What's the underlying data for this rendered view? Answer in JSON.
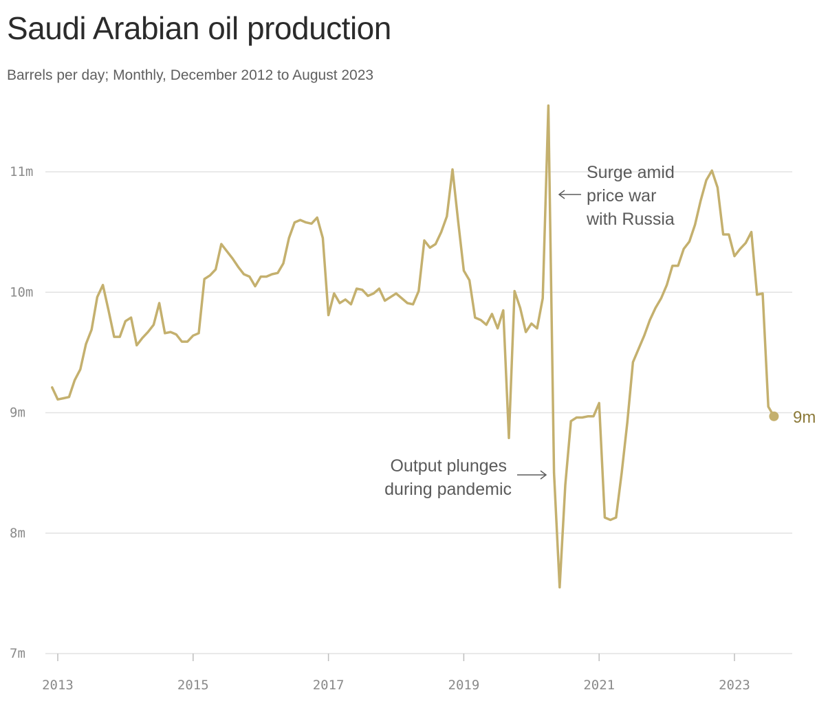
{
  "title": "Saudi Arabian oil production",
  "subtitle": "Barrels per day; Monthly, December 2012 to August 2023",
  "colors": {
    "line": "#c4b06e",
    "end_label": "#8c7a3a",
    "grid": "#e2e2e2",
    "annotation": "#5a5a5a"
  },
  "annotations": {
    "surge": [
      "Surge amid",
      "price war",
      "with Russia"
    ],
    "plunge": [
      "Output plunges",
      "during pandemic"
    ]
  },
  "end_label": "9m",
  "chart_data": {
    "type": "line",
    "title": "Saudi Arabian oil production",
    "subtitle": "Barrels per day; Monthly, December 2012 to August 2023",
    "ylim": [
      7,
      11.5
    ],
    "y_ticks": [
      {
        "value": 7,
        "label": "7m"
      },
      {
        "value": 8,
        "label": "8m"
      },
      {
        "value": 9,
        "label": "9m"
      },
      {
        "value": 10,
        "label": "10m"
      },
      {
        "value": 11,
        "label": "11m"
      }
    ],
    "x_ticks": [
      {
        "year": 2013,
        "label": "2013"
      },
      {
        "year": 2015,
        "label": "2015"
      },
      {
        "year": 2017,
        "label": "2017"
      },
      {
        "year": 2019,
        "label": "2019"
      },
      {
        "year": 2021,
        "label": "2021"
      },
      {
        "year": 2023,
        "label": "2023"
      }
    ],
    "grid": true,
    "series": [
      {
        "start": "2012-12",
        "end": "2023-08",
        "values": [
          9.21,
          9.11,
          9.12,
          9.13,
          9.27,
          9.36,
          9.57,
          9.69,
          9.96,
          10.06,
          9.85,
          9.63,
          9.63,
          9.76,
          9.79,
          9.56,
          9.62,
          9.67,
          9.73,
          9.91,
          9.66,
          9.67,
          9.65,
          9.59,
          9.59,
          9.64,
          9.66,
          10.11,
          10.14,
          10.19,
          10.4,
          10.34,
          10.28,
          10.21,
          10.15,
          10.13,
          10.05,
          10.13,
          10.13,
          10.15,
          10.16,
          10.24,
          10.45,
          10.58,
          10.6,
          10.58,
          10.57,
          10.62,
          10.45,
          9.81,
          9.99,
          9.91,
          9.94,
          9.9,
          10.03,
          10.02,
          9.97,
          9.99,
          10.03,
          9.93,
          9.96,
          9.99,
          9.95,
          9.91,
          9.9,
          10.01,
          10.43,
          10.37,
          10.4,
          10.5,
          10.63,
          11.02,
          10.59,
          10.18,
          10.1,
          9.79,
          9.77,
          9.73,
          9.82,
          9.7,
          9.85,
          8.79,
          10.01,
          9.87,
          9.67,
          9.74,
          9.7,
          9.95,
          11.55,
          8.5,
          7.55,
          8.4,
          8.93,
          8.96,
          8.96,
          8.97,
          8.97,
          9.08,
          8.13,
          8.11,
          8.13,
          8.5,
          8.92,
          9.42,
          9.53,
          9.64,
          9.77,
          9.87,
          9.95,
          10.06,
          10.22,
          10.22,
          10.36,
          10.42,
          10.56,
          10.76,
          10.93,
          11.01,
          10.87,
          10.48,
          10.48,
          10.3,
          10.36,
          10.41,
          10.5,
          9.98,
          9.99,
          9.05,
          8.97
        ]
      }
    ]
  }
}
